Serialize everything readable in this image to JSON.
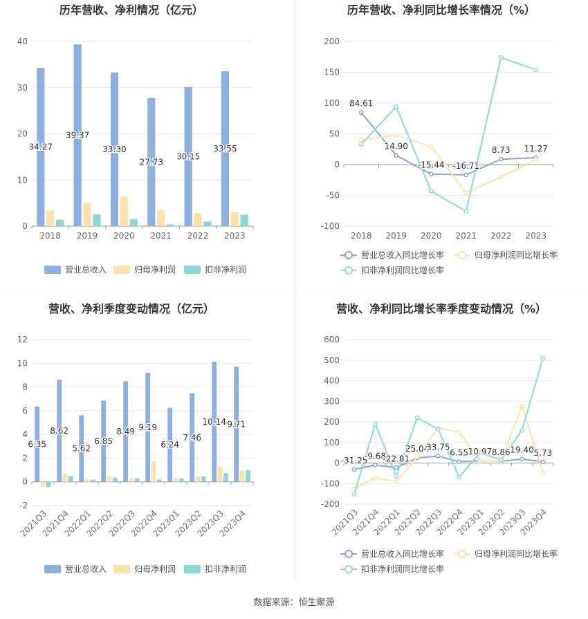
{
  "legends": {
    "bar": [
      "营业总收入",
      "归母净利润",
      "扣非净利润"
    ],
    "line": [
      "营业总收入同比增长率",
      "归母净利润同比增长率",
      "扣非净利润同比增长率"
    ]
  },
  "colors": {
    "revenue": "#8eaedd",
    "net_profit": "#fde1ac",
    "deducted_profit": "#8fd6d8",
    "revenue_line": "#8ba4d4",
    "net_line": "#fde1a6",
    "ded_line": "#8ed8d8"
  },
  "footer": "数据来源：恒生聚源",
  "chart_data": [
    {
      "id": "annual-amounts",
      "type": "bar",
      "title": "历年营收、净利情况（亿元）",
      "categories": [
        "2018",
        "2019",
        "2020",
        "2021",
        "2022",
        "2023"
      ],
      "ylim": [
        0,
        40
      ],
      "yticks": [
        0,
        10,
        20,
        30,
        40
      ],
      "grid": true,
      "legend_position": "bottom",
      "series": [
        {
          "name": "营业总收入",
          "values": [
            34.27,
            39.37,
            33.3,
            27.73,
            30.15,
            33.55
          ],
          "labels": [
            "34.27",
            "39.37",
            "33.30",
            "27.73",
            "30.15",
            "33.55"
          ]
        },
        {
          "name": "归母净利润",
          "values": [
            3.4,
            5.0,
            6.4,
            3.5,
            2.8,
            3.1
          ]
        },
        {
          "name": "扣非净利润",
          "values": [
            1.4,
            2.6,
            1.5,
            0.4,
            1.0,
            2.5
          ]
        }
      ]
    },
    {
      "id": "annual-growth",
      "type": "line",
      "title": "历年营收、净利同比增长率情况（%）",
      "categories": [
        "2018",
        "2019",
        "2020",
        "2021",
        "2022",
        "2023"
      ],
      "ylim": [
        -100,
        200
      ],
      "yticks": [
        -100,
        -50,
        0,
        50,
        100,
        150,
        200
      ],
      "grid": true,
      "legend_position": "bottom",
      "series": [
        {
          "name": "营业总收入同比增长率",
          "values": [
            84.61,
            14.9,
            -15.44,
            -16.71,
            8.73,
            11.27
          ],
          "labels": [
            "84.61",
            "14.90",
            "-15.44",
            "-16.71",
            "8.73",
            "11.27"
          ]
        },
        {
          "name": "归母净利润同比增长率",
          "values": [
            40,
            48,
            29,
            -46,
            -20,
            8
          ]
        },
        {
          "name": "扣非净利润同比增长率",
          "values": [
            33,
            94,
            -43,
            -76,
            174,
            154
          ]
        }
      ]
    },
    {
      "id": "quarterly-amounts",
      "type": "bar",
      "title": "营收、净利季度变动情况（亿元）",
      "categories": [
        "2021Q3",
        "2021Q4",
        "2022Q1",
        "2022Q2",
        "2022Q3",
        "2022Q4",
        "2023Q1",
        "2023Q2",
        "2023Q3",
        "2023Q4"
      ],
      "ylim": [
        -2,
        12
      ],
      "yticks": [
        -2,
        0,
        2,
        4,
        6,
        8,
        10,
        12
      ],
      "grid": true,
      "legend_position": "bottom",
      "series": [
        {
          "name": "营业总收入",
          "values": [
            6.35,
            8.62,
            5.62,
            6.85,
            8.49,
            9.19,
            6.24,
            7.46,
            10.14,
            9.71
          ],
          "labels": [
            "6.35",
            "8.62",
            "5.62",
            "6.85",
            "8.49",
            "9.19",
            "6.24",
            "7.46",
            "10.14",
            "9.71"
          ]
        },
        {
          "name": "归母净利润",
          "values": [
            -0.4,
            0.7,
            0.25,
            0.45,
            0.35,
            1.75,
            0.3,
            0.45,
            1.3,
            0.95
          ]
        },
        {
          "name": "扣非净利润",
          "values": [
            -0.45,
            0.5,
            0.2,
            0.35,
            0.3,
            0.2,
            0.3,
            0.45,
            0.75,
            1.0
          ]
        }
      ]
    },
    {
      "id": "quarterly-growth",
      "type": "line",
      "title": "营收、净利同比增长率季度变动情况（%）",
      "categories": [
        "2021Q3",
        "2021Q4",
        "2022Q1",
        "2022Q2",
        "2022Q3",
        "2022Q4",
        "2023Q1",
        "2023Q2",
        "2023Q3",
        "2023Q4"
      ],
      "ylim": [
        -200,
        600
      ],
      "yticks": [
        -200,
        -100,
        0,
        100,
        200,
        300,
        400,
        500,
        600
      ],
      "grid": true,
      "legend_position": "bottom",
      "series": [
        {
          "name": "营业总收入同比增长率",
          "values": [
            -31.25,
            -9.68,
            -22.81,
            25.04,
            33.75,
            6.55,
            10.97,
            8.86,
            19.4,
            5.73
          ],
          "labels": [
            "-31.25",
            "-9.68",
            "-22.81",
            "25.04",
            "33.75",
            "6.55",
            "10.97",
            "8.86",
            "19.40",
            "5.73"
          ]
        },
        {
          "name": "归母净利润同比增长率",
          "values": [
            -125,
            -72,
            -90,
            30,
            170,
            150,
            10,
            10,
            278,
            -45
          ]
        },
        {
          "name": "扣非净利润同比增长率",
          "values": [
            -150,
            190,
            -65,
            220,
            165,
            -68,
            50,
            15,
            160,
            508
          ]
        }
      ]
    }
  ]
}
